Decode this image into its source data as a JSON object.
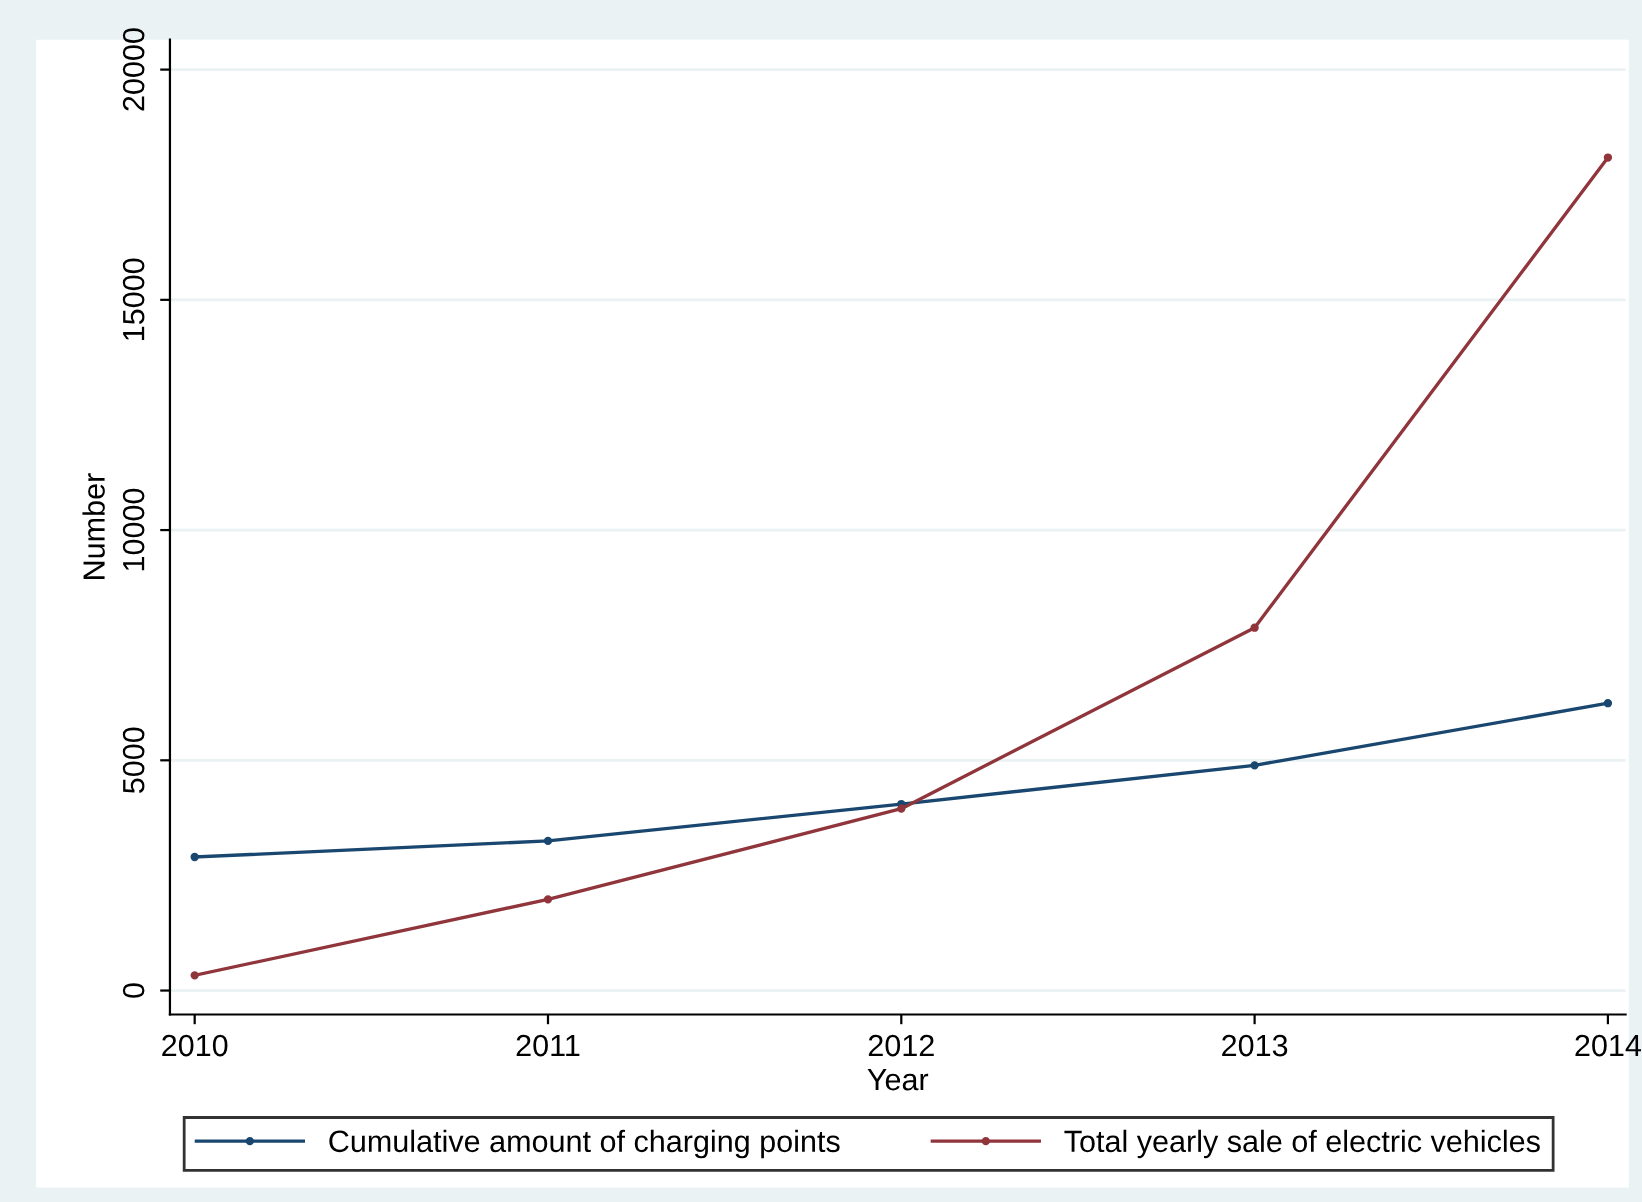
{
  "chart_data": {
    "type": "line",
    "xlabel": "Year",
    "ylabel": "Number",
    "x": [
      2010,
      2011,
      2012,
      2013,
      2014
    ],
    "series": [
      {
        "name": "Cumulative amount of charging points",
        "color": "#1a476f",
        "values": [
          2900,
          3250,
          4050,
          4890,
          6240
        ]
      },
      {
        "name": "Total yearly sale of electric vehicles",
        "color": "#90353b",
        "values": [
          330,
          1980,
          3950,
          7880,
          18090
        ]
      }
    ],
    "xlim": [
      2009.93,
      2014.05
    ],
    "xticks": [
      2010,
      2011,
      2012,
      2013,
      2014
    ],
    "ylim": [
      -520,
      20650
    ],
    "yticks": [
      0,
      5000,
      10000,
      15000,
      20000
    ],
    "grid": "y",
    "legend": "bottom",
    "marker": "circle",
    "line_style": "solid"
  }
}
